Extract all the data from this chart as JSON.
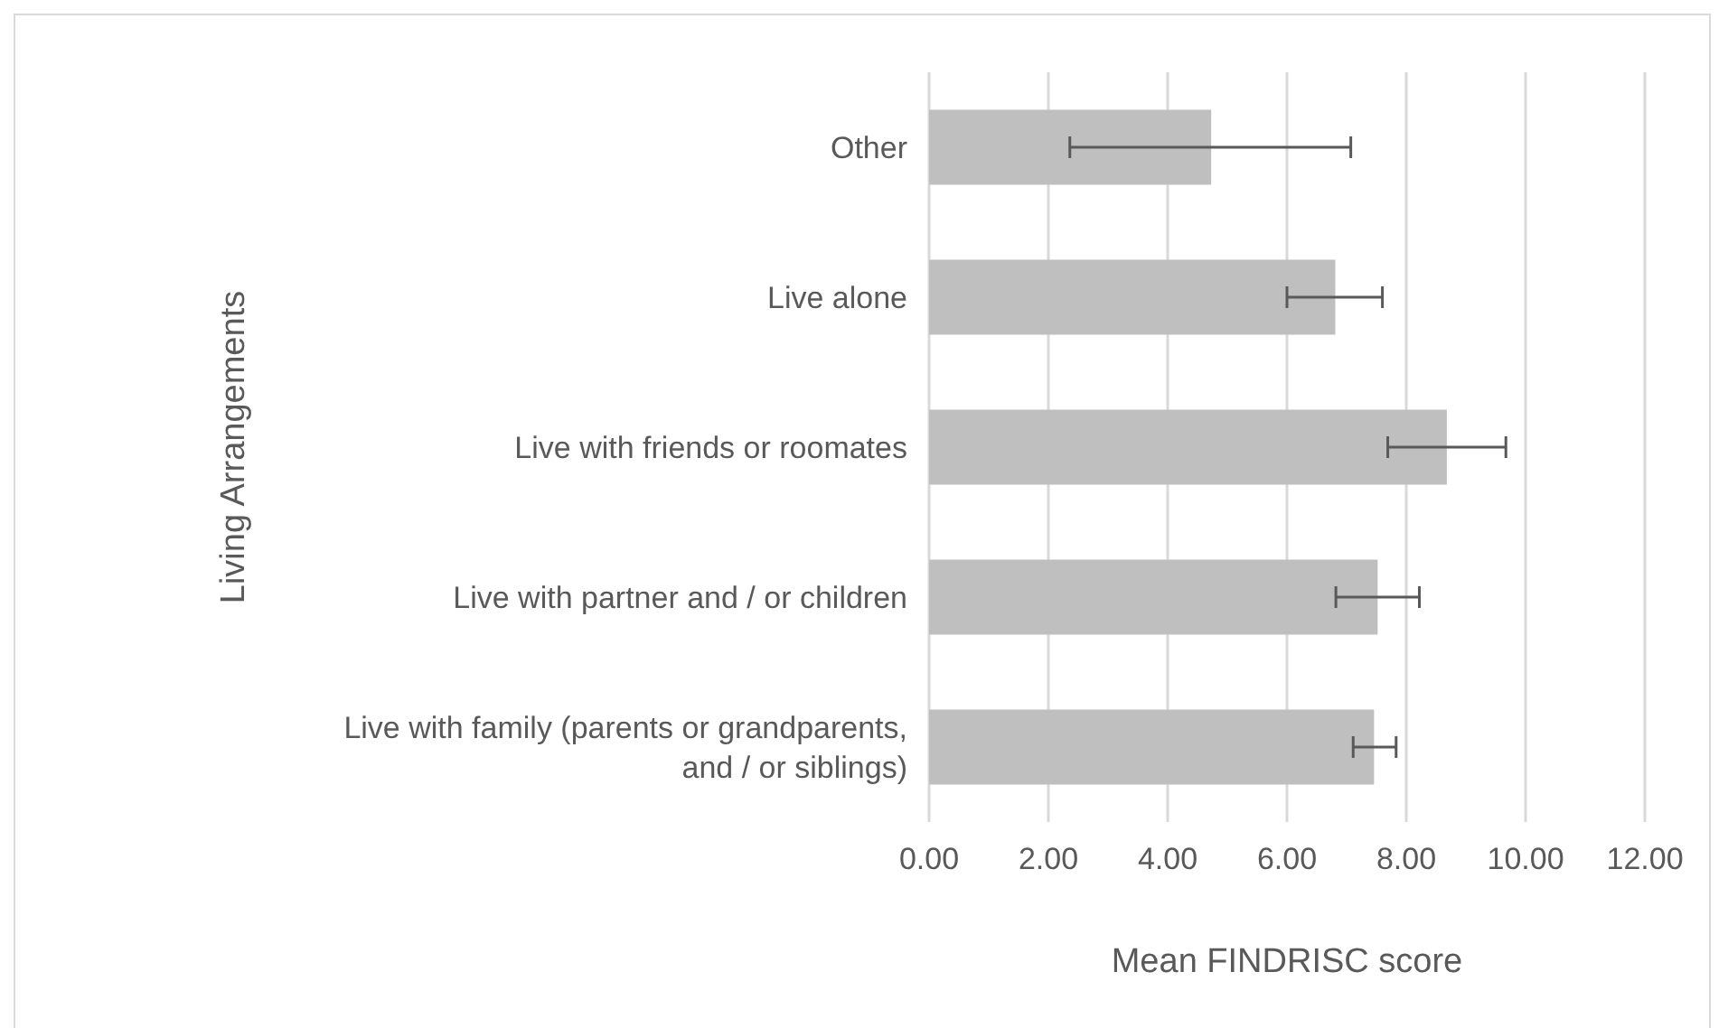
{
  "chart_data": {
    "type": "bar",
    "orientation": "horizontal",
    "xlabel": "Mean FINDRISC score",
    "ylabel": "Living Arrangements",
    "categories": [
      "Other",
      "Live alone",
      "Live with friends or roomates",
      "Live with partner and / or children",
      "Live with family (parents or grandparents, and / or siblings)"
    ],
    "values": [
      4.73,
      6.81,
      8.68,
      7.52,
      7.46
    ],
    "errors": [
      [
        2.36,
        7.07
      ],
      [
        6.0,
        7.6
      ],
      [
        7.69,
        9.67
      ],
      [
        6.82,
        8.22
      ],
      [
        7.11,
        7.83
      ]
    ],
    "color": "#bfbfbf",
    "xlim": [
      0,
      12
    ],
    "xticks": [
      {
        "value": 0,
        "label": "0.00"
      },
      {
        "value": 2,
        "label": "2.00"
      },
      {
        "value": 4,
        "label": "4.00"
      },
      {
        "value": 6,
        "label": "6.00"
      },
      {
        "value": 8,
        "label": "8.00"
      },
      {
        "value": 10,
        "label": "10.00"
      },
      {
        "value": 12,
        "label": "12.00"
      }
    ],
    "grid": "x"
  }
}
